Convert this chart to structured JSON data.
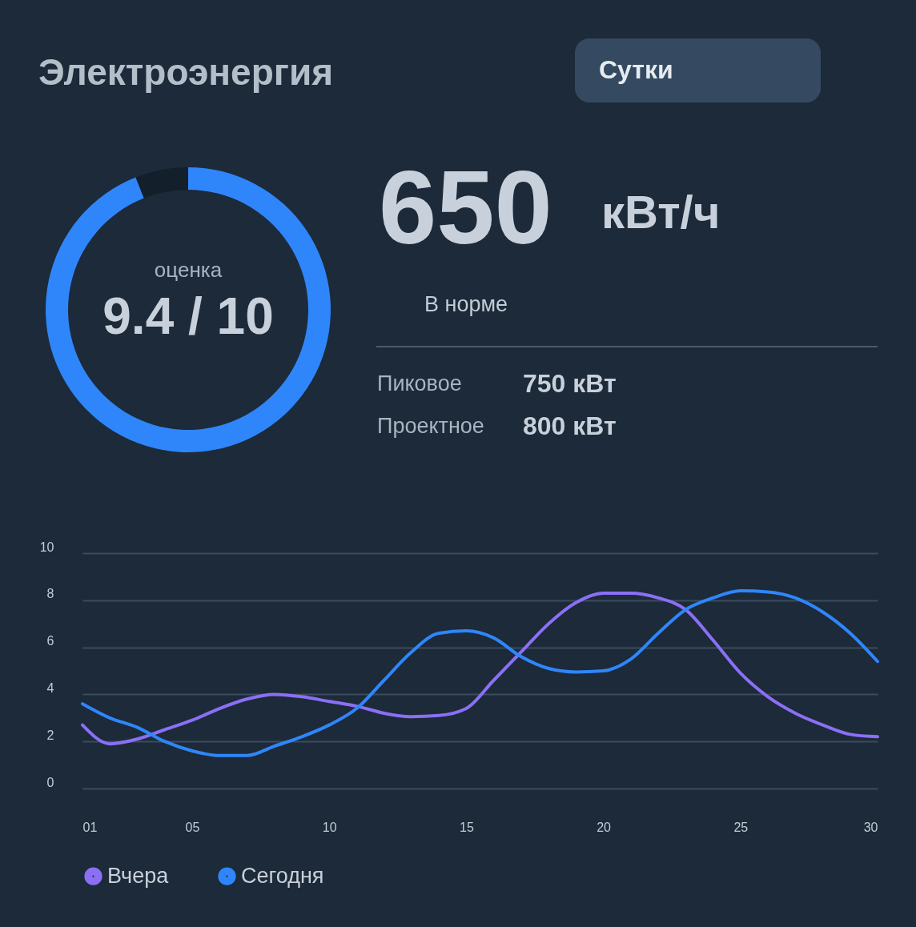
{
  "chart_data": [
    {
      "type": "other",
      "title": "Электроэнергия",
      "annotations": [
        "Сутки",
        "650",
        "кВт/ч",
        "В норме",
        "Пиковое",
        "750 кВт",
        "Проектное",
        "800 кВт"
      ]
    },
    {
      "type": "donut",
      "categories": [
        null,
        null
      ],
      "values": [
        94,
        6
      ],
      "colors": [
        "#2f86fb",
        "#131f2b"
      ],
      "annotations": [
        "оценка",
        "9.4 / 10"
      ]
    },
    {
      "type": "line",
      "x": [
        1,
        2,
        3,
        4,
        5,
        6,
        7,
        8,
        9,
        10,
        11,
        12,
        13,
        14,
        15,
        16,
        17,
        18,
        19,
        20,
        21,
        22,
        23,
        24,
        25,
        26,
        27,
        28,
        29,
        30
      ],
      "xlim": [
        1,
        30
      ],
      "xticks": [
        {
          "value": 1,
          "label": "01"
        },
        {
          "value": 5,
          "label": "05"
        },
        10,
        15,
        20,
        25,
        30
      ],
      "ylim": [
        0,
        10
      ],
      "yticks": [
        0,
        2,
        4,
        6,
        8,
        10
      ],
      "grid": "y",
      "legend": "bottom",
      "line_style": "solid",
      "series": [
        {
          "name": "Вчера",
          "color": "#8b6ff5",
          "values": [
            2.7,
            1.9,
            2.1,
            2.5,
            2.9,
            3.4,
            3.8,
            4.0,
            3.9,
            3.7,
            3.5,
            3.2,
            3.05,
            3.1,
            3.4,
            4.6,
            5.8,
            7.0,
            7.9,
            8.3,
            8.3,
            8.1,
            7.6,
            6.3,
            4.9,
            3.9,
            3.2,
            2.7,
            2.3,
            2.2
          ]
        },
        {
          "name": "Сегодня",
          "color": "#2f86fb",
          "values": [
            3.6,
            3.0,
            2.6,
            2.0,
            1.6,
            1.4,
            1.4,
            1.8,
            2.2,
            2.7,
            3.4,
            4.6,
            5.8,
            6.6,
            6.7,
            6.4,
            5.6,
            5.1,
            4.95,
            5.0,
            5.5,
            6.6,
            7.6,
            8.1,
            8.4,
            8.35,
            8.1,
            7.5,
            6.6,
            5.4
          ]
        }
      ]
    }
  ]
}
